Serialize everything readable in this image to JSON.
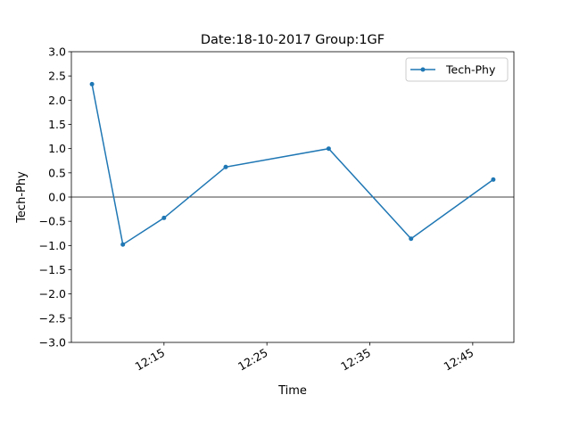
{
  "chart_data": {
    "type": "line",
    "title": "Date:18-10-2017 Group:1GF",
    "xlabel": "Time",
    "ylabel": "Tech-Phy",
    "x_unit": "time (HH:MM)",
    "xlim": [
      "12:06",
      "12:49"
    ],
    "ylim": [
      -3.0,
      3.0
    ],
    "y_ticks": [
      -3.0,
      -2.5,
      -2.0,
      -1.5,
      -1.0,
      -0.5,
      0.0,
      0.5,
      1.0,
      1.5,
      2.0,
      2.5,
      3.0
    ],
    "y_tick_labels": [
      "−3.0",
      "−2.5",
      "−2.0",
      "−1.5",
      "−1.0",
      "−0.5",
      "0.0",
      "0.5",
      "1.0",
      "1.5",
      "2.0",
      "2.5",
      "3.0"
    ],
    "x_ticks": [
      "12:15",
      "12:25",
      "12:35",
      "12:45"
    ],
    "x_tick_labels": [
      "12:15",
      "12:25",
      "12:35",
      "12:45"
    ],
    "horizontal_reference_line": 0.0,
    "grid": false,
    "legend": {
      "position": "top-right"
    },
    "series": [
      {
        "name": "Tech-Phy",
        "color": "#1f77b4",
        "marker": "dot",
        "x": [
          "12:08",
          "12:11",
          "12:15",
          "12:21",
          "12:31",
          "12:39",
          "12:47"
        ],
        "y": [
          2.33,
          -0.98,
          -0.43,
          0.62,
          1.0,
          -0.86,
          0.36
        ]
      }
    ]
  }
}
